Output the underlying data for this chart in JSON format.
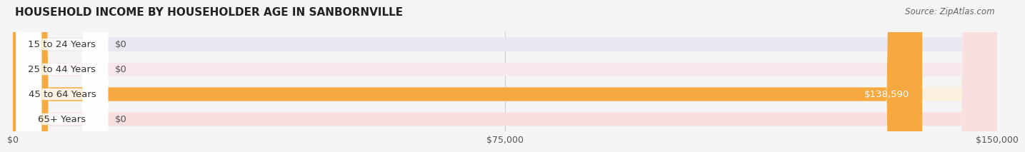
{
  "title": "HOUSEHOLD INCOME BY HOUSEHOLDER AGE IN SANBORNVILLE",
  "source": "Source: ZipAtlas.com",
  "categories": [
    "15 to 24 Years",
    "25 to 44 Years",
    "45 to 64 Years",
    "65+ Years"
  ],
  "values": [
    0,
    0,
    138590,
    0
  ],
  "max_value": 150000,
  "bar_colors": [
    "#a0a0d0",
    "#f090a0",
    "#f5a940",
    "#f09090"
  ],
  "bar_bg_colors": [
    "#e8e8f0",
    "#f8e8ec",
    "#fdf0e0",
    "#f8e0e0"
  ],
  "label_bg_colors": [
    "#d0d0e8",
    "#f0c0cc",
    "#f0a030",
    "#f0b0b0"
  ],
  "value_labels": [
    "$0",
    "$0",
    "$138,590",
    "$0"
  ],
  "xtick_labels": [
    "$0",
    "$75,000",
    "$150,000"
  ],
  "xtick_values": [
    0,
    75000,
    150000
  ],
  "title_fontsize": 11,
  "source_fontsize": 8.5,
  "label_fontsize": 9.5,
  "value_fontsize": 9.5,
  "bar_height": 0.55,
  "background_color": "#f5f5f5"
}
